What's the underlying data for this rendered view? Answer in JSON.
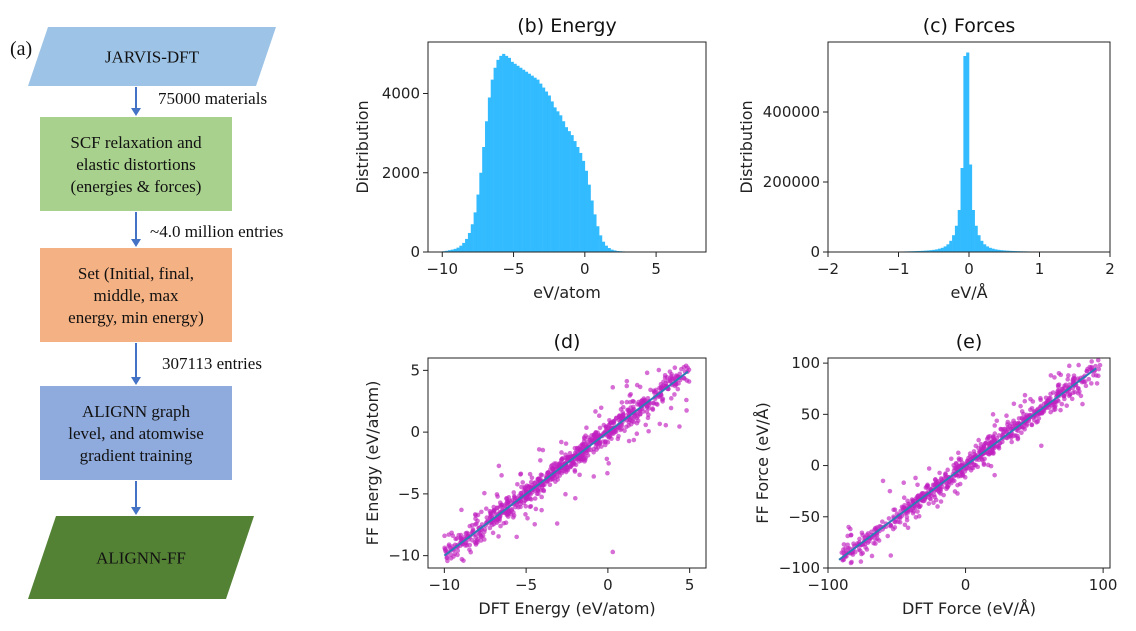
{
  "panel_label_a": "(a)",
  "flowchart": {
    "steps": [
      {
        "label_lines": [
          "JARVIS-DFT"
        ],
        "fill": "#9dc3e6",
        "text_color": "#111111"
      },
      {
        "label_lines": [
          "SCF relaxation and",
          "elastic distortions",
          "(energies & forces)"
        ],
        "fill": "#a9d18e",
        "text_color": "#111111"
      },
      {
        "label_lines": [
          "Set (Initial, final,",
          "middle, max",
          "energy, min energy)"
        ],
        "fill": "#f4b183",
        "text_color": "#111111"
      },
      {
        "label_lines": [
          "ALIGNN graph",
          "level, and atomwise",
          "gradient training"
        ],
        "fill": "#8faadc",
        "text_color": "#111111"
      },
      {
        "label_lines": [
          "ALIGNN-FF"
        ],
        "fill": "#548235",
        "text_color": "#ffffff"
      }
    ],
    "arrow_labels": [
      "75000 materials",
      "~4.0 million entries",
      "307113 entries",
      ""
    ],
    "arrow_color": "#4472c4"
  },
  "colors": {
    "histogram": "#33bbff",
    "scatter": "#c020c0",
    "fit_line": "#2c7bb6",
    "axis": "#222222"
  },
  "chart_data": [
    {
      "id": "b",
      "type": "bar",
      "title": "(b) Energy",
      "xlabel": "eV/atom",
      "ylabel": "Distribution",
      "xlim": [
        -11,
        8.5
      ],
      "ylim": [
        0,
        5300
      ],
      "xticks": [
        -10,
        -5,
        0,
        5
      ],
      "xtick_labels": [
        "−10",
        "−5",
        "0",
        "5"
      ],
      "yticks": [
        0,
        2000,
        4000
      ],
      "ytick_labels": [
        "0",
        "2000",
        "4000"
      ],
      "bin_width": 0.2,
      "x": [
        -9.9,
        -9.7,
        -9.5,
        -9.3,
        -9.1,
        -8.9,
        -8.7,
        -8.5,
        -8.3,
        -8.1,
        -7.9,
        -7.7,
        -7.5,
        -7.3,
        -7.1,
        -6.9,
        -6.7,
        -6.5,
        -6.3,
        -6.1,
        -5.9,
        -5.7,
        -5.5,
        -5.3,
        -5.1,
        -4.9,
        -4.7,
        -4.5,
        -4.3,
        -4.1,
        -3.9,
        -3.7,
        -3.5,
        -3.3,
        -3.1,
        -2.9,
        -2.7,
        -2.5,
        -2.3,
        -2.1,
        -1.9,
        -1.7,
        -1.5,
        -1.3,
        -1.1,
        -0.9,
        -0.7,
        -0.5,
        -0.3,
        -0.1,
        0.1,
        0.3,
        0.5,
        0.7,
        0.9,
        1.1,
        1.3,
        1.5,
        1.7,
        1.9,
        2.1,
        2.3,
        2.5,
        2.7,
        2.9,
        3.1,
        3.3,
        3.5,
        3.7,
        3.9
      ],
      "values": [
        20,
        30,
        45,
        60,
        80,
        110,
        160,
        230,
        330,
        480,
        700,
        1000,
        1450,
        2000,
        2650,
        3300,
        3900,
        4350,
        4650,
        4850,
        4950,
        5000,
        4950,
        4900,
        4800,
        4750,
        4700,
        4650,
        4600,
        4550,
        4500,
        4450,
        4400,
        4350,
        4250,
        4150,
        4050,
        3950,
        3800,
        3650,
        3550,
        3450,
        3300,
        3150,
        3050,
        2950,
        2800,
        2650,
        2500,
        2300,
        2050,
        1700,
        1300,
        950,
        650,
        420,
        260,
        160,
        100,
        60,
        40,
        25,
        20,
        15,
        12,
        10,
        8,
        6,
        5,
        4
      ]
    },
    {
      "id": "c",
      "type": "bar",
      "title": "(c) Forces",
      "xlabel": "eV/Å",
      "ylabel": "Distribution",
      "xlim": [
        -2,
        2
      ],
      "ylim": [
        0,
        600000
      ],
      "xticks": [
        -2,
        -1,
        0,
        1,
        2
      ],
      "xtick_labels": [
        "−2",
        "−1",
        "0",
        "1",
        "2"
      ],
      "yticks": [
        0,
        200000,
        400000
      ],
      "ytick_labels": [
        "0",
        "200000",
        "400000"
      ],
      "bin_width": 0.04,
      "x": [
        -1.22,
        -1.18,
        -1.14,
        -1.1,
        -1.06,
        -1.02,
        -0.98,
        -0.94,
        -0.9,
        -0.86,
        -0.82,
        -0.78,
        -0.74,
        -0.7,
        -0.66,
        -0.62,
        -0.58,
        -0.54,
        -0.5,
        -0.46,
        -0.42,
        -0.38,
        -0.34,
        -0.3,
        -0.26,
        -0.22,
        -0.18,
        -0.14,
        -0.1,
        -0.06,
        -0.02,
        0.02,
        0.06,
        0.1,
        0.14,
        0.18,
        0.22,
        0.26,
        0.3,
        0.34,
        0.38,
        0.42,
        0.46,
        0.5,
        0.54,
        0.58,
        0.62,
        0.66,
        0.7,
        0.74,
        0.78,
        0.82,
        0.86,
        0.9,
        0.94,
        0.98,
        1.02,
        1.06,
        1.1,
        1.14,
        1.18,
        1.22
      ],
      "values": [
        800,
        900,
        1000,
        1100,
        1200,
        1300,
        1400,
        1500,
        1700,
        1900,
        2100,
        2400,
        2700,
        3000,
        3400,
        3900,
        4500,
        5200,
        6200,
        7500,
        9500,
        12000,
        16000,
        22000,
        32000,
        48000,
        75000,
        120000,
        240000,
        560000,
        570000,
        250000,
        120000,
        75000,
        48000,
        32000,
        22000,
        16000,
        12000,
        9500,
        7500,
        6200,
        5200,
        4500,
        3900,
        3400,
        3000,
        2700,
        2400,
        2100,
        1900,
        1700,
        1500,
        1400,
        1300,
        1200,
        1100,
        1000,
        900,
        800,
        700,
        600
      ]
    },
    {
      "id": "d",
      "type": "scatter",
      "title": "(d)",
      "xlabel": "DFT Energy (eV/atom)",
      "ylabel": "FF Energy (eV/atom)",
      "xlim": [
        -11,
        6
      ],
      "ylim": [
        -11,
        6
      ],
      "xticks": [
        -10,
        -5,
        0,
        5
      ],
      "xtick_labels": [
        "−10",
        "−5",
        "0",
        "5"
      ],
      "yticks": [
        -10,
        -5,
        0,
        5
      ],
      "ytick_labels": [
        "−10",
        "−5",
        "0",
        "5"
      ],
      "fit_line": [
        [
          -10,
          -10
        ],
        [
          4.9,
          4.9
        ]
      ],
      "x_range": [
        -10,
        5
      ],
      "main_spread": 0.45,
      "outlier_spread": 1.6,
      "points_main": 900,
      "points_outlier": 160,
      "extra_points": [
        [
          0.3,
          -9.7
        ],
        [
          -6.5,
          -3.5
        ],
        [
          -3.1,
          -7.4
        ],
        [
          3.5,
          4.6
        ],
        [
          4.8,
          2.6
        ],
        [
          2.4,
          4.8
        ]
      ]
    },
    {
      "id": "e",
      "type": "scatter",
      "title": "(e)",
      "xlabel": "DFT Force (eV/Å)",
      "ylabel": "FF Force (eV/Å)",
      "xlim": [
        -100,
        105
      ],
      "ylim": [
        -100,
        105
      ],
      "xticks": [
        -100,
        0,
        100
      ],
      "xtick_labels": [
        "−100",
        "0",
        "100"
      ],
      "yticks": [
        -100,
        -50,
        0,
        50,
        100
      ],
      "ytick_labels": [
        "−100",
        "−50",
        "0",
        "50",
        "100"
      ],
      "fit_line": [
        [
          -92,
          -92
        ],
        [
          95,
          95
        ]
      ],
      "x_range": [
        -90,
        98
      ],
      "main_spread": 5,
      "outlier_spread": 14,
      "points_main": 700,
      "points_outlier": 140,
      "extra_points": [
        [
          -90,
          -85
        ],
        [
          -85,
          -60
        ],
        [
          -60,
          -15
        ],
        [
          -55,
          -25
        ],
        [
          62,
          88
        ],
        [
          70,
          60
        ],
        [
          85,
          60
        ],
        [
          95,
          88
        ],
        [
          40,
          58
        ],
        [
          20,
          50
        ]
      ]
    }
  ]
}
